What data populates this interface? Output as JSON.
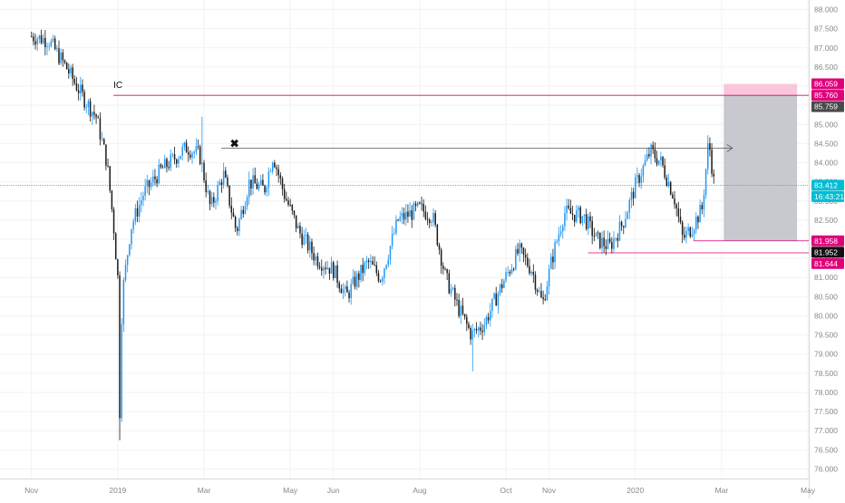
{
  "chart_data": {
    "type": "candlestick",
    "title": "",
    "xlabel": "",
    "ylabel": "",
    "ylim": [
      75.75,
      88.25
    ],
    "x_tick_labels": [
      "Nov",
      "2019",
      "Mar",
      "May",
      "Jun",
      "Aug",
      "Oct",
      "Nov",
      "2020",
      "Mar",
      "May"
    ],
    "x_tick_months": [
      0,
      2,
      4,
      6,
      7,
      9,
      11,
      12,
      14,
      16,
      18
    ],
    "x_range_months": [
      -0.73,
      18.02
    ],
    "y_ticks": [
      76.0,
      76.5,
      77.0,
      77.5,
      78.0,
      78.5,
      79.0,
      79.5,
      80.0,
      80.5,
      81.0,
      81.5,
      82.0,
      82.5,
      83.0,
      83.5,
      84.0,
      84.5,
      85.0,
      85.5,
      86.0,
      86.5,
      87.0,
      87.5,
      88.0
    ],
    "price_anchors": [
      [
        0,
        87.3
      ],
      [
        0.4,
        87.2
      ],
      [
        0.8,
        86.5
      ],
      [
        1.2,
        85.7
      ],
      [
        1.5,
        85.2
      ],
      [
        1.75,
        84.0
      ],
      [
        1.9,
        82.4
      ],
      [
        2.0,
        81.0
      ],
      [
        2.04,
        77.2
      ],
      [
        2.1,
        80.5
      ],
      [
        2.3,
        82.3
      ],
      [
        2.6,
        83.2
      ],
      [
        3.0,
        83.8
      ],
      [
        3.6,
        84.4
      ],
      [
        3.9,
        84.2
      ],
      [
        4.15,
        82.8
      ],
      [
        4.45,
        83.7
      ],
      [
        4.75,
        82.2
      ],
      [
        5.05,
        83.5
      ],
      [
        5.4,
        83.3
      ],
      [
        5.6,
        84.2
      ],
      [
        5.85,
        83.2
      ],
      [
        6.2,
        82.2
      ],
      [
        6.6,
        81.5
      ],
      [
        7.0,
        81.2
      ],
      [
        7.3,
        80.5
      ],
      [
        7.5,
        80.9
      ],
      [
        7.8,
        81.4
      ],
      [
        8.1,
        81.0
      ],
      [
        8.5,
        82.5
      ],
      [
        9.0,
        82.8
      ],
      [
        9.3,
        82.6
      ],
      [
        9.6,
        81.0
      ],
      [
        9.9,
        80.2
      ],
      [
        10.2,
        79.5
      ],
      [
        10.5,
        79.8
      ],
      [
        10.9,
        80.8
      ],
      [
        11.3,
        81.7
      ],
      [
        11.6,
        81.2
      ],
      [
        11.85,
        80.3
      ],
      [
        12.05,
        81.4
      ],
      [
        12.35,
        82.7
      ],
      [
        12.8,
        82.6
      ],
      [
        13.1,
        82.0
      ],
      [
        13.4,
        81.8
      ],
      [
        13.7,
        82.4
      ],
      [
        14.0,
        83.4
      ],
      [
        14.35,
        84.3
      ],
      [
        14.6,
        84.0
      ],
      [
        14.9,
        83.1
      ],
      [
        15.1,
        82.0
      ],
      [
        15.3,
        82.3
      ],
      [
        15.55,
        82.8
      ],
      [
        15.7,
        84.6
      ],
      [
        15.83,
        83.4
      ]
    ],
    "horizontal_levels": [
      {
        "name": "IC level",
        "value": 85.76,
        "color": "#e0007a"
      },
      {
        "name": "Resistance ray",
        "value": 84.38,
        "color": "#555555"
      },
      {
        "name": "Current price",
        "value": 83.412,
        "color": "#00bcd4"
      },
      {
        "name": "Stop level",
        "value": 81.958,
        "color": "#e0007a"
      },
      {
        "name": "Support",
        "value": 81.644,
        "color": "#e0007a"
      }
    ],
    "annotations": [
      {
        "text": "IC",
        "month": 1.9,
        "value": 85.95
      },
      {
        "text": "✖",
        "month": 4.6,
        "value": 84.4
      }
    ],
    "position_box": {
      "month_start": 16.05,
      "month_end": 17.75,
      "entry": 85.76,
      "target": 86.059,
      "stop": 81.958
    },
    "price_labels": [
      {
        "text": "86.059",
        "value": 86.059,
        "bg": "#e0007a",
        "fg": "#ffffff"
      },
      {
        "text": "85.760",
        "value": 85.76,
        "bg": "#e0007a",
        "fg": "#ffffff"
      },
      {
        "text": "85.759",
        "value": 85.759,
        "bg": "#4a4a4a",
        "fg": "#ffffff"
      },
      {
        "text": "83.412",
        "value": 83.412,
        "bg": "#00bcd4",
        "fg": "#ffffff"
      },
      {
        "text": "16:43:21",
        "value": 83.13,
        "bg": "#00bcd4",
        "fg": "#ffffff"
      },
      {
        "text": "81.958",
        "value": 81.958,
        "bg": "#e0007a",
        "fg": "#ffffff"
      },
      {
        "text": "81.952",
        "value": 81.952,
        "bg": "#111111",
        "fg": "#ffffff"
      },
      {
        "text": "81.644",
        "value": 81.644,
        "bg": "#e0007a",
        "fg": "#ffffff"
      }
    ],
    "colors": {
      "up": "#2196f3",
      "down": "#1a1a1a",
      "grid": "#f2f2f2",
      "axis_text": "#888888",
      "position_stop_fill": "#c8c9cf",
      "position_target_fill": "#f9c6dc"
    },
    "grid": true,
    "legend": "none"
  }
}
